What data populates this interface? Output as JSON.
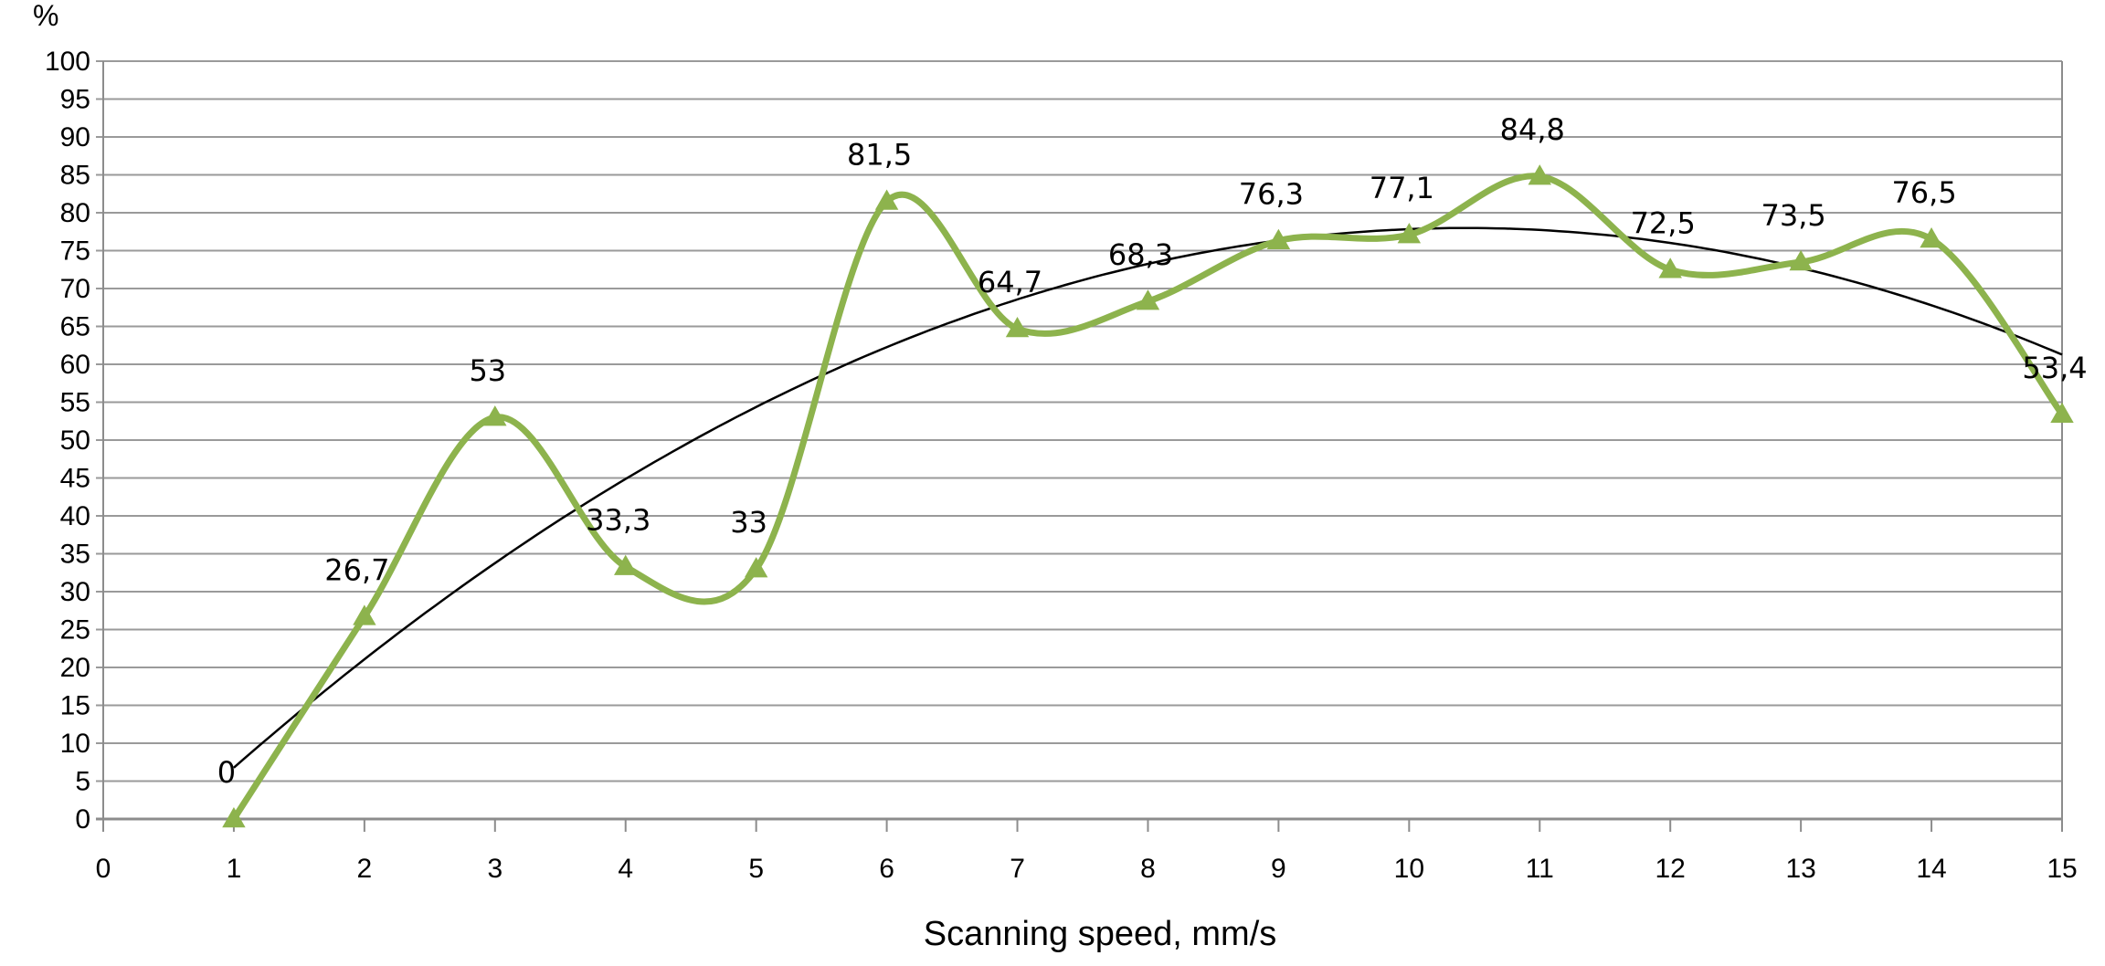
{
  "chart_data": {
    "type": "line",
    "xlabel": "Scanning speed, mm/s",
    "ylabel": "%",
    "xlim": [
      0,
      15
    ],
    "ylim": [
      0,
      100
    ],
    "x_ticks": [
      0,
      1,
      2,
      3,
      4,
      5,
      6,
      7,
      8,
      9,
      10,
      11,
      12,
      13,
      14,
      15
    ],
    "y_ticks": [
      0,
      5,
      10,
      15,
      20,
      25,
      30,
      35,
      40,
      45,
      50,
      55,
      60,
      65,
      70,
      75,
      80,
      85,
      90,
      95,
      100
    ],
    "grid": "horizontal",
    "legend": "none",
    "series": [
      {
        "x": [
          1,
          2,
          3,
          4,
          5,
          6,
          7,
          8,
          9,
          10,
          11,
          12,
          13,
          14,
          15
        ],
        "values": [
          0,
          26.7,
          53,
          33.3,
          33,
          81.5,
          64.7,
          68.3,
          76.3,
          77.1,
          84.8,
          72.5,
          73.5,
          76.5,
          53.4
        ],
        "data_labels": [
          "0",
          "26,7",
          "53",
          "33,3",
          "33",
          "81,5",
          "64,7",
          "68,3",
          "76,3",
          "77,1",
          "84,8",
          "72,5",
          "73,5",
          "76,5",
          "53,4"
        ],
        "color": "#8db34d",
        "marker": "triangle",
        "smoothed": true
      }
    ],
    "trendline": {
      "type": "polynomial-2",
      "color": "#000000"
    }
  }
}
